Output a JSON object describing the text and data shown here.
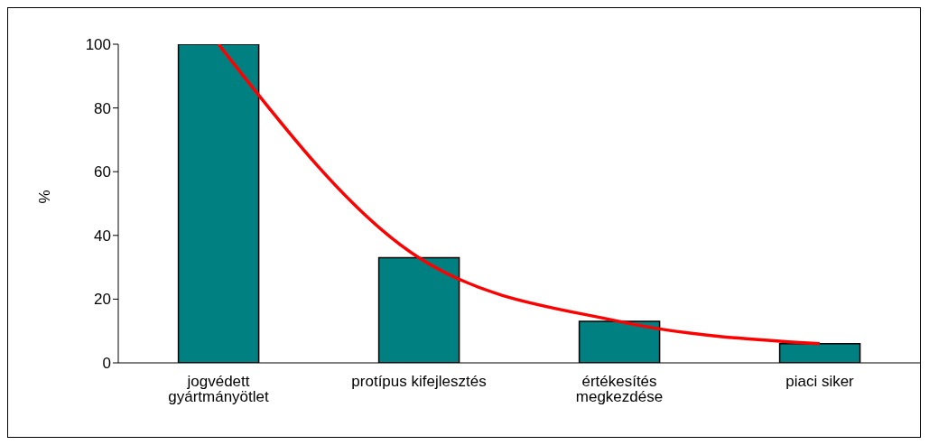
{
  "chart_data": {
    "type": "bar",
    "ylabel": "%",
    "categories": [
      "jogvédett gyártmányötlet",
      "protípus kifejlesztés",
      "értékesítés megkezdése",
      "piaci siker"
    ],
    "series": [
      {
        "color": "#008080",
        "values": [
          100,
          33,
          13,
          6
        ]
      },
      {
        "type": "line",
        "color": "#ff0000",
        "values": [
          100,
          33,
          13,
          6
        ]
      }
    ],
    "ylim": [
      0,
      100
    ],
    "yticks": [
      0,
      20,
      40,
      60,
      80,
      100
    ],
    "grid": false,
    "legend": false,
    "marker": "none",
    "line_style": "solid"
  }
}
